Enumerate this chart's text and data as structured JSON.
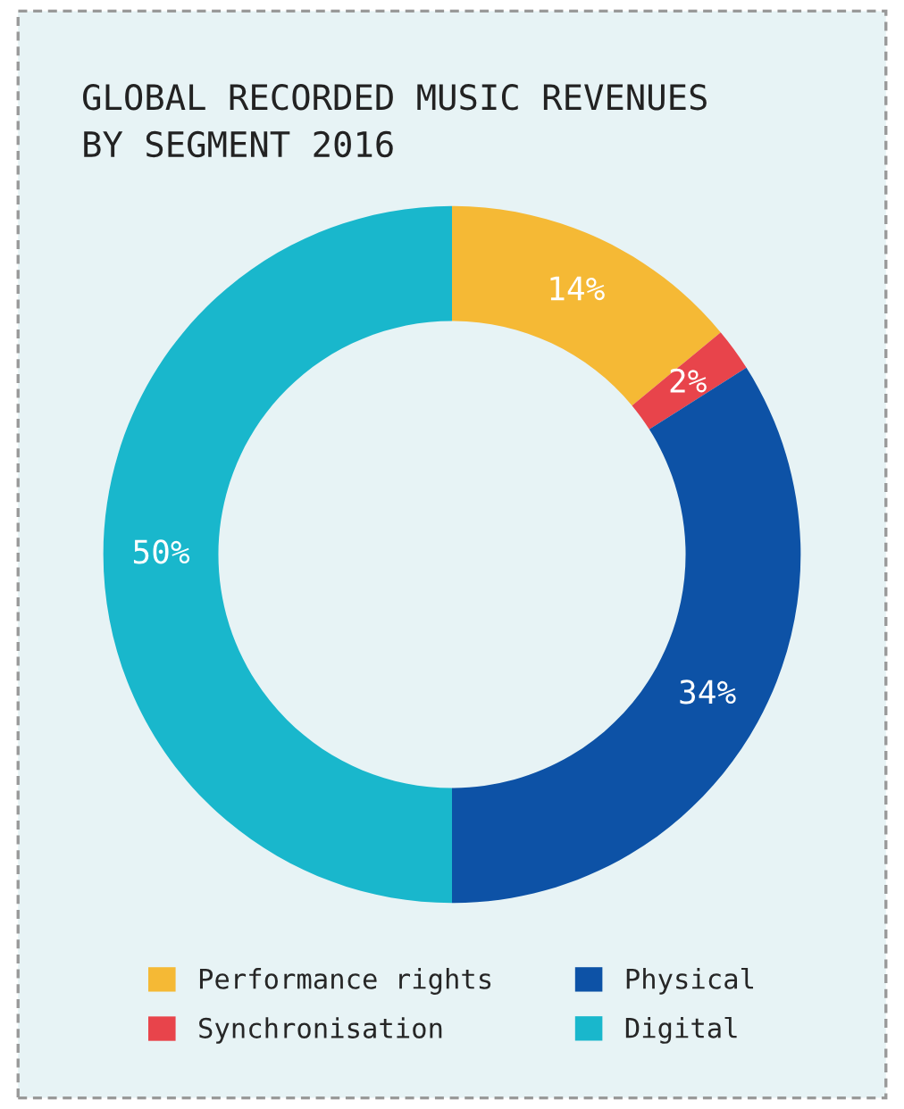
{
  "chart_data": {
    "type": "donut",
    "title": "GLOBAL RECORDED MUSIC REVENUES\nBY SEGMENT 2016",
    "categories": [
      "Performance rights",
      "Synchronisation",
      "Physical",
      "Digital"
    ],
    "values": [
      14,
      2,
      34,
      50
    ],
    "colors": [
      "#f5b935",
      "#e8444b",
      "#0d52a6",
      "#19b7cc"
    ],
    "value_labels": [
      "14%",
      "2%",
      "34%",
      "50%"
    ],
    "legend": "bottom"
  }
}
